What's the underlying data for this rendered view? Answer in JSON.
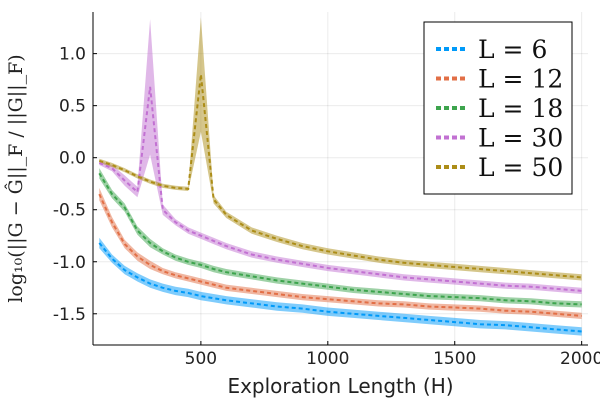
{
  "chart_data": {
    "type": "line",
    "title": "",
    "xlabel": "Exploration Length (H)",
    "ylabel": "log₁₀(||G − Ĝ||_F / ||G||_F)",
    "xlim": [
      75,
      2025
    ],
    "ylim": [
      -1.8,
      1.4
    ],
    "xticks": [
      500,
      1000,
      1500,
      2000
    ],
    "xtick_labels": [
      "500",
      "1000",
      "1500",
      "2000"
    ],
    "yticks": [
      -1.5,
      -1.0,
      -0.5,
      0.0,
      0.5,
      1.0
    ],
    "ytick_labels": [
      "-1.5",
      "-1.0",
      "-0.5",
      "0.0",
      "0.5",
      "1.0"
    ],
    "grid": true,
    "legend_position": "top-right",
    "x": [
      100,
      150,
      200,
      250,
      300,
      350,
      400,
      450,
      500,
      550,
      600,
      700,
      800,
      900,
      1000,
      1100,
      1200,
      1300,
      1400,
      1500,
      1600,
      1700,
      1800,
      1900,
      2000
    ],
    "series": [
      {
        "name": "L = 6",
        "color": "#009af9",
        "values": [
          -0.82,
          -0.97,
          -1.08,
          -1.15,
          -1.21,
          -1.25,
          -1.28,
          -1.3,
          -1.33,
          -1.35,
          -1.37,
          -1.4,
          -1.43,
          -1.45,
          -1.48,
          -1.5,
          -1.52,
          -1.54,
          -1.56,
          -1.58,
          -1.6,
          -1.61,
          -1.63,
          -1.65,
          -1.67
        ],
        "band": [
          0.05,
          0.04,
          0.04,
          0.04,
          0.04,
          0.04,
          0.04,
          0.04,
          0.04,
          0.04,
          0.04,
          0.04,
          0.04,
          0.04,
          0.04,
          0.04,
          0.04,
          0.04,
          0.04,
          0.04,
          0.04,
          0.04,
          0.04,
          0.04,
          0.04
        ]
      },
      {
        "name": "L = 12",
        "color": "#e26f46",
        "values": [
          -0.35,
          -0.62,
          -0.83,
          -0.95,
          -1.03,
          -1.09,
          -1.13,
          -1.16,
          -1.19,
          -1.22,
          -1.25,
          -1.28,
          -1.31,
          -1.34,
          -1.36,
          -1.38,
          -1.4,
          -1.41,
          -1.43,
          -1.44,
          -1.45,
          -1.47,
          -1.48,
          -1.5,
          -1.52
        ],
        "band": [
          0.06,
          0.05,
          0.04,
          0.04,
          0.04,
          0.03,
          0.03,
          0.03,
          0.03,
          0.03,
          0.03,
          0.03,
          0.03,
          0.03,
          0.03,
          0.03,
          0.03,
          0.03,
          0.03,
          0.03,
          0.03,
          0.03,
          0.03,
          0.03,
          0.03
        ]
      },
      {
        "name": "L = 18",
        "color": "#3da44d",
        "values": [
          -0.15,
          -0.35,
          -0.48,
          -0.7,
          -0.82,
          -0.9,
          -0.96,
          -1.0,
          -1.03,
          -1.07,
          -1.1,
          -1.14,
          -1.18,
          -1.21,
          -1.24,
          -1.27,
          -1.29,
          -1.31,
          -1.33,
          -1.34,
          -1.35,
          -1.37,
          -1.38,
          -1.4,
          -1.41
        ],
        "band": [
          0.05,
          0.04,
          0.04,
          0.04,
          0.04,
          0.03,
          0.03,
          0.03,
          0.03,
          0.03,
          0.03,
          0.03,
          0.03,
          0.03,
          0.03,
          0.03,
          0.03,
          0.03,
          0.03,
          0.03,
          0.03,
          0.03,
          0.03,
          0.03,
          0.03
        ]
      },
      {
        "name": "L = 30",
        "color": "#c271d2",
        "values": [
          -0.05,
          -0.1,
          -0.22,
          -0.33,
          0.68,
          -0.5,
          -0.62,
          -0.7,
          -0.75,
          -0.8,
          -0.85,
          -0.93,
          -0.98,
          -1.02,
          -1.06,
          -1.09,
          -1.12,
          -1.15,
          -1.17,
          -1.19,
          -1.21,
          -1.23,
          -1.24,
          -1.26,
          -1.28
        ],
        "band": [
          0.02,
          0.03,
          0.05,
          0.05,
          0.65,
          0.05,
          0.03,
          0.03,
          0.03,
          0.03,
          0.03,
          0.03,
          0.03,
          0.03,
          0.03,
          0.03,
          0.03,
          0.03,
          0.03,
          0.03,
          0.03,
          0.03,
          0.03,
          0.03,
          0.03
        ]
      },
      {
        "name": "L = 50",
        "color": "#ac8d18",
        "values": [
          -0.03,
          -0.07,
          -0.12,
          -0.18,
          -0.23,
          -0.27,
          -0.29,
          -0.3,
          0.8,
          -0.4,
          -0.55,
          -0.7,
          -0.78,
          -0.85,
          -0.9,
          -0.94,
          -0.98,
          -1.01,
          -1.03,
          -1.05,
          -1.07,
          -1.09,
          -1.11,
          -1.13,
          -1.15
        ],
        "band": [
          0.02,
          0.02,
          0.02,
          0.02,
          0.02,
          0.02,
          0.02,
          0.02,
          0.55,
          0.04,
          0.03,
          0.03,
          0.03,
          0.03,
          0.03,
          0.03,
          0.03,
          0.03,
          0.03,
          0.03,
          0.03,
          0.03,
          0.03,
          0.03,
          0.03
        ]
      }
    ]
  }
}
